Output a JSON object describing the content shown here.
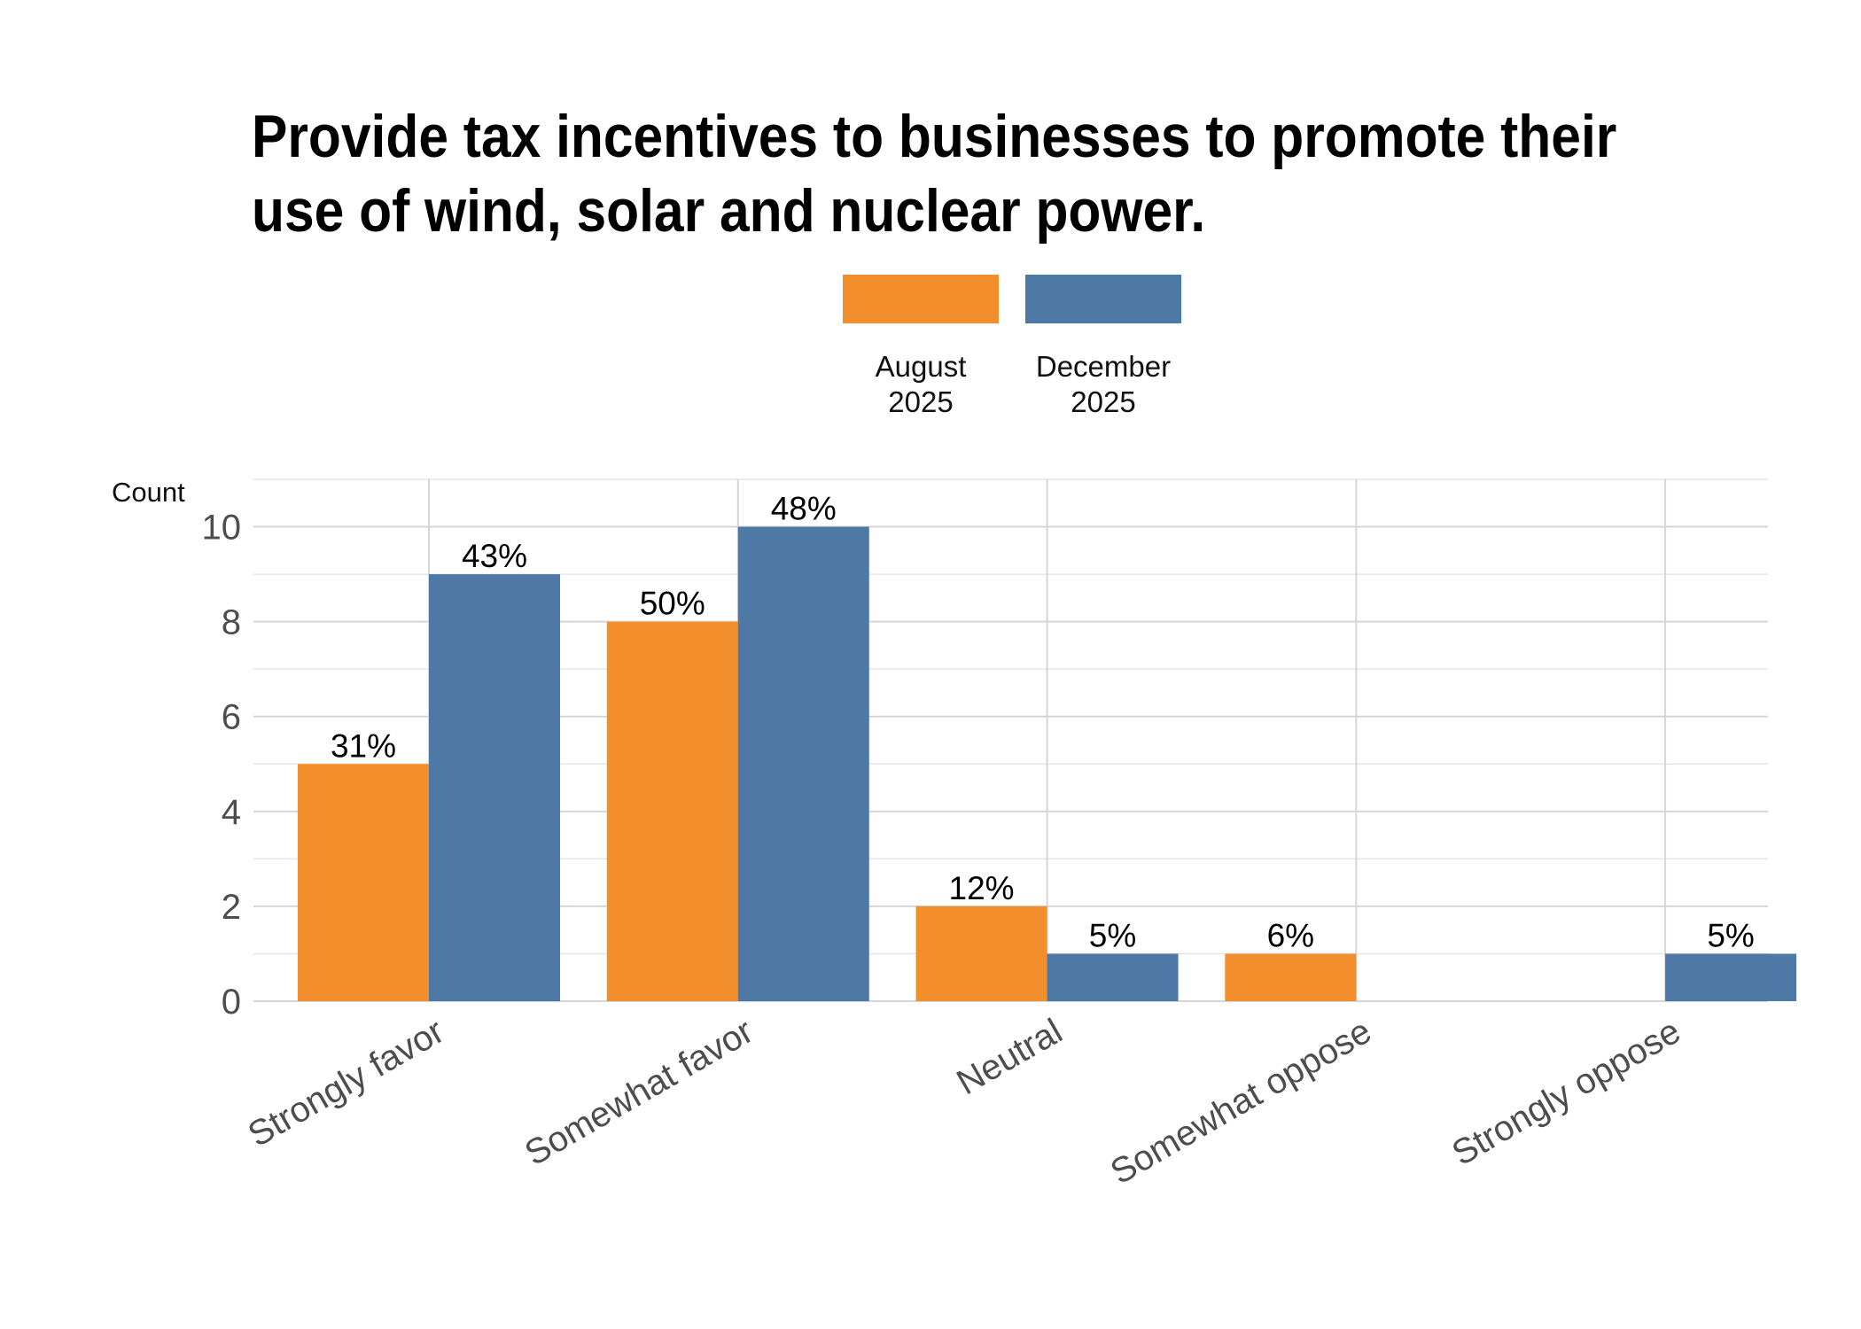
{
  "chart_data": {
    "type": "bar",
    "title": "Provide tax incentives to businesses to promote their use of wind, solar and nuclear power.",
    "ylabel": "Count",
    "xlabel": "",
    "categories": [
      "Strongly favor",
      "Somewhat favor",
      "Neutral",
      "Somewhat oppose",
      "Strongly oppose"
    ],
    "series": [
      {
        "name": "August 2025",
        "legend_lines": [
          "August",
          "2025"
        ],
        "color": "#F28E2B",
        "values": [
          5,
          8,
          2,
          1,
          0
        ],
        "labels": [
          "31%",
          "50%",
          "12%",
          "6%",
          ""
        ]
      },
      {
        "name": "December 2025",
        "legend_lines": [
          "December",
          "2025"
        ],
        "color": "#4E79A7",
        "values": [
          9,
          10,
          1,
          0,
          1
        ],
        "labels": [
          "43%",
          "48%",
          "5%",
          "",
          "5%"
        ]
      }
    ],
    "ylim": [
      0,
      11
    ],
    "yticks": [
      0,
      2,
      4,
      6,
      8,
      10
    ],
    "grid": true,
    "legend_position": "top-center"
  }
}
